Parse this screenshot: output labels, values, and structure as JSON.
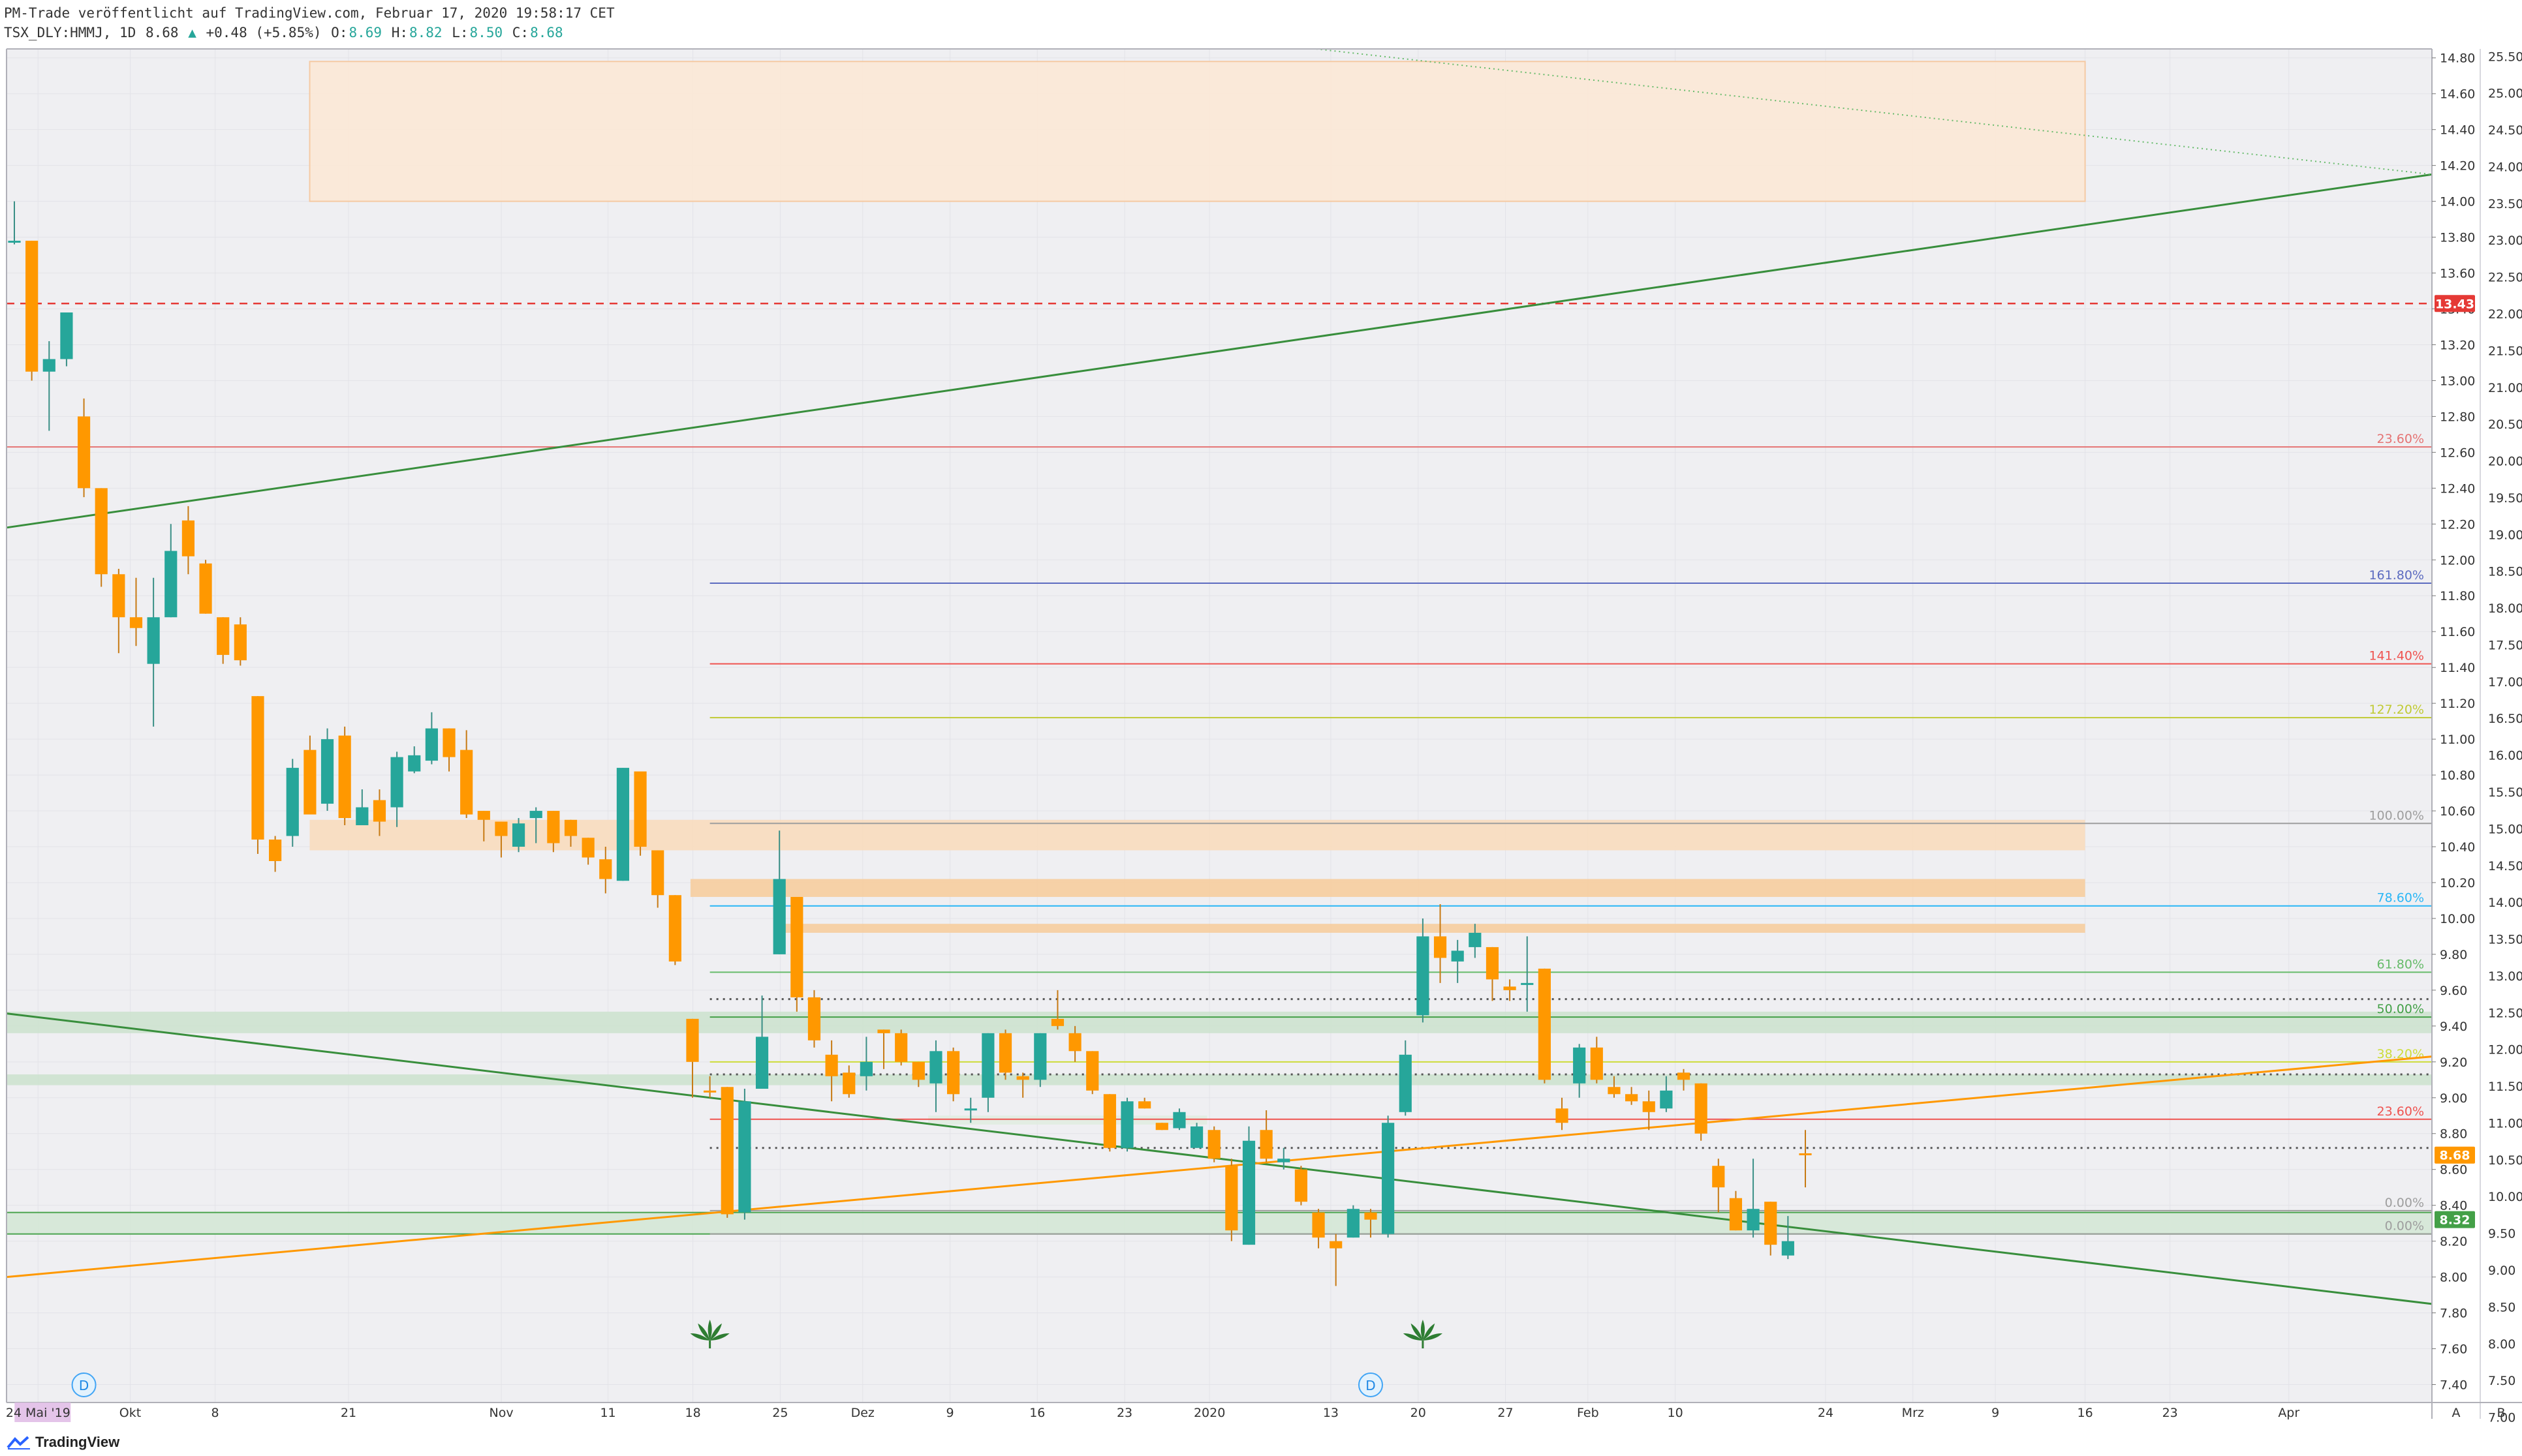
{
  "header": {
    "publisher": "PM-Trade veröffentlicht auf TradingView.com, Februar 17, 2020 19:58:17 CET",
    "symbol": "TSX_DLY:HMMJ, 1D",
    "last": "8.68",
    "arrow": "▲",
    "change": "+0.48 (+5.85%)",
    "o_label": "O:",
    "o": "8.69",
    "h_label": "H:",
    "h": "8.82",
    "l_label": "L:",
    "l": "8.50",
    "c_label": "C:",
    "c": "8.68"
  },
  "brand": "TradingView",
  "icons": [
    "tradingview-logo-icon",
    "dividend-d-icon",
    "cannabis-leaf-icon"
  ],
  "colors": {
    "up": "#26a69a",
    "down": "#ff9800",
    "uptrend": "#388e3c",
    "downtrend": "#388e3c",
    "orange_trend": "#ff9800",
    "resistance_dash": "#e53935",
    "last_price_badge": "#ff9800",
    "support_badge": "#43a047",
    "red_badge": "#e53935"
  },
  "chart_data": {
    "type": "candlestick",
    "title": "",
    "xlabel": "",
    "ylabel": "",
    "grid": true,
    "left_axis_range": [
      7.3,
      14.85
    ],
    "right_axis_range": [
      7.2,
      25.6
    ],
    "x_tick_labels": [
      "24 Mai '19",
      "Okt",
      "8",
      "21",
      "Nov",
      "11",
      "18",
      "25",
      "Dez",
      "9",
      "16",
      "23",
      "2020",
      "13",
      "20",
      "27",
      "Feb",
      "10",
      "24",
      "Mrz",
      "9",
      "16",
      "23",
      "Apr"
    ],
    "left_ticks": [
      "14.80",
      "14.60",
      "14.40",
      "14.20",
      "14.00",
      "13.80",
      "13.60",
      "13.40",
      "13.20",
      "13.00",
      "12.80",
      "12.60",
      "12.40",
      "12.20",
      "12.00",
      "11.80",
      "11.60",
      "11.40",
      "11.20",
      "11.00",
      "10.80",
      "10.60",
      "10.40",
      "10.20",
      "10.00",
      "9.80",
      "9.60",
      "9.40",
      "9.20",
      "9.00",
      "8.80",
      "8.60",
      "8.40",
      "8.20",
      "8.00",
      "7.80",
      "7.60",
      "7.40"
    ],
    "right_ticks": [
      "25.50",
      "25.00",
      "24.50",
      "24.00",
      "23.50",
      "23.00",
      "22.50",
      "22.00",
      "21.50",
      "21.00",
      "20.50",
      "20.00",
      "19.50",
      "19.00",
      "18.50",
      "18.00",
      "17.50",
      "17.00",
      "16.50",
      "16.00",
      "15.50",
      "15.00",
      "14.50",
      "14.00",
      "13.50",
      "13.00",
      "12.50",
      "12.00",
      "11.50",
      "11.00",
      "10.50",
      "10.00",
      "9.50",
      "9.00",
      "8.50",
      "8.00",
      "7.50",
      "7.00"
    ],
    "price_badges": [
      {
        "label": "13.43",
        "value": 13.43,
        "color": "#e53935"
      },
      {
        "label": "8.68",
        "value": 8.68,
        "color": "#ff9800"
      },
      {
        "label": "8.32",
        "value": 8.32,
        "color": "#43a047"
      }
    ],
    "axis_corner_labels": [
      "A",
      "B"
    ],
    "fib_levels": [
      {
        "label": "23.60%",
        "value": 12.63,
        "color": "#e57373",
        "from": 0
      },
      {
        "label": "161.80%",
        "value": 11.87,
        "color": "#5c6bc0",
        "from": 0.29
      },
      {
        "label": "141.40%",
        "value": 11.42,
        "color": "#ef5350",
        "from": 0.29
      },
      {
        "label": "127.20%",
        "value": 11.12,
        "color": "#c0ca33",
        "from": 0.29
      },
      {
        "label": "100.00%",
        "value": 10.53,
        "color": "#9e9e9e",
        "from": 0.29
      },
      {
        "label": "78.60%",
        "value": 10.07,
        "color": "#29b6f6",
        "from": 0.29
      },
      {
        "label": "61.80%",
        "value": 9.7,
        "color": "#66bb6a",
        "from": 0.29
      },
      {
        "label": "50.00%",
        "value": 9.45,
        "color": "#43a047",
        "from": 0.29
      },
      {
        "label": "38.20%",
        "value": 9.2,
        "color": "#cddc39",
        "from": 0.29
      },
      {
        "label": "23.60%",
        "value": 8.88,
        "color": "#ef5350",
        "from": 0.29
      },
      {
        "label": "0.00%",
        "value": 8.37,
        "color": "#9e9e9e",
        "from": 0.29
      },
      {
        "label": "0.00%",
        "value": 8.24,
        "color": "#9e9e9e",
        "from": 0.29
      }
    ],
    "dotted_levels": [
      9.55,
      9.13,
      8.72
    ],
    "resistance_dashed": 13.43,
    "zones": [
      {
        "x0": 0.125,
        "x1": 0.857,
        "y0": 14.78,
        "y1": 14.0,
        "fill": "#fbe9d8",
        "stroke": "#f6c9a0"
      },
      {
        "x0": 0.125,
        "x1": 0.857,
        "y0": 10.55,
        "y1": 10.38,
        "fill": "#f8dcc0",
        "stroke": "none"
      },
      {
        "x0": 0.282,
        "x1": 0.857,
        "y0": 10.22,
        "y1": 10.12,
        "fill": "#f6cfa2",
        "stroke": "none"
      },
      {
        "x0": 0.317,
        "x1": 0.857,
        "y0": 9.97,
        "y1": 9.92,
        "fill": "#f6cfa2",
        "stroke": "none"
      },
      {
        "x0": 0.0,
        "x1": 1.0,
        "y0": 9.48,
        "y1": 9.36,
        "fill": "#cfe3d1",
        "stroke": "none"
      },
      {
        "x0": 0.0,
        "x1": 1.0,
        "y0": 9.13,
        "y1": 9.07,
        "fill": "#cfe3d1",
        "stroke": "none"
      },
      {
        "x0": 0.0,
        "x1": 1.0,
        "y0": 8.36,
        "y1": 8.24,
        "fill": "#d6e8d8",
        "stroke": "#43a047"
      },
      {
        "x0": 0.38,
        "x1": 0.495,
        "y0": 8.9,
        "y1": 8.85,
        "fill": "#e2ece2",
        "stroke": "none"
      }
    ],
    "trendlines": [
      {
        "name": "uptrend-green",
        "x0": 0.0,
        "y0": 12.18,
        "x1": 1.0,
        "y1": 14.15,
        "color": "#388e3c",
        "style": "solid"
      },
      {
        "name": "upper-dotted",
        "x0": 0.54,
        "y0": 14.85,
        "x1": 1.0,
        "y1": 14.15,
        "color": "#66bb6a",
        "style": "dotted"
      },
      {
        "name": "downtrend-green",
        "x0": 0.0,
        "y0": 9.47,
        "x1": 1.0,
        "y1": 7.85,
        "color": "#388e3c",
        "style": "solid"
      },
      {
        "name": "orange-trend",
        "x0": 0.0,
        "y0": 8.0,
        "x1": 1.0,
        "y1": 9.23,
        "color": "#ff9800",
        "style": "solid"
      }
    ],
    "candles": [
      [
        13.78,
        13.78,
        14.0,
        13.76
      ],
      [
        13.78,
        13.05,
        13.78,
        13.0
      ],
      [
        13.05,
        13.12,
        13.22,
        12.72
      ],
      [
        13.12,
        13.38,
        13.38,
        13.08
      ],
      [
        12.8,
        12.4,
        12.9,
        12.35
      ],
      [
        12.4,
        11.92,
        12.4,
        11.85
      ],
      [
        11.92,
        11.68,
        11.95,
        11.48
      ],
      [
        11.68,
        11.62,
        11.9,
        11.52
      ],
      [
        11.42,
        11.68,
        11.9,
        11.07
      ],
      [
        11.68,
        12.05,
        12.2,
        11.68
      ],
      [
        12.22,
        12.02,
        12.3,
        11.92
      ],
      [
        11.98,
        11.7,
        12.0,
        11.7
      ],
      [
        11.68,
        11.47,
        11.68,
        11.42
      ],
      [
        11.64,
        11.44,
        11.68,
        11.41
      ],
      [
        11.24,
        10.44,
        11.24,
        10.36
      ],
      [
        10.44,
        10.32,
        10.46,
        10.26
      ],
      [
        10.46,
        10.84,
        10.89,
        10.4
      ],
      [
        10.94,
        10.58,
        11.02,
        10.58
      ],
      [
        10.64,
        11.0,
        11.06,
        10.6
      ],
      [
        11.02,
        10.56,
        11.07,
        10.52
      ],
      [
        10.52,
        10.62,
        10.72,
        10.54
      ],
      [
        10.66,
        10.54,
        10.72,
        10.46
      ],
      [
        10.62,
        10.9,
        10.93,
        10.51
      ],
      [
        10.82,
        10.91,
        10.96,
        10.81
      ],
      [
        10.88,
        11.06,
        11.15,
        10.86
      ],
      [
        11.06,
        10.9,
        11.06,
        10.82
      ],
      [
        10.94,
        10.58,
        11.05,
        10.56
      ],
      [
        10.6,
        10.55,
        10.6,
        10.43
      ],
      [
        10.54,
        10.46,
        10.54,
        10.34
      ],
      [
        10.4,
        10.53,
        10.56,
        10.37
      ],
      [
        10.56,
        10.6,
        10.62,
        10.42
      ],
      [
        10.6,
        10.42,
        10.6,
        10.37
      ],
      [
        10.55,
        10.46,
        10.55,
        10.4
      ],
      [
        10.45,
        10.34,
        10.45,
        10.3
      ],
      [
        10.33,
        10.22,
        10.4,
        10.14
      ],
      [
        10.21,
        10.84,
        10.84,
        10.21
      ],
      [
        10.82,
        10.4,
        10.8,
        10.35
      ],
      [
        10.38,
        10.13,
        10.38,
        10.06
      ],
      [
        10.13,
        9.76,
        10.13,
        9.74
      ],
      [
        9.44,
        9.2,
        9.44,
        9.0
      ],
      [
        9.04,
        9.03,
        9.12,
        9.0
      ],
      [
        9.06,
        8.35,
        9.06,
        8.33
      ],
      [
        8.36,
        8.98,
        9.05,
        8.32
      ],
      [
        9.05,
        9.34,
        9.57,
        9.05
      ],
      [
        9.8,
        10.22,
        10.49,
        9.8
      ],
      [
        10.12,
        9.56,
        10.12,
        9.48
      ],
      [
        9.56,
        9.32,
        9.6,
        9.28
      ],
      [
        9.24,
        9.12,
        9.32,
        8.98
      ],
      [
        9.14,
        9.02,
        9.18,
        9.0
      ],
      [
        9.12,
        9.2,
        9.34,
        9.04
      ],
      [
        9.38,
        9.36,
        9.38,
        9.16
      ],
      [
        9.36,
        9.2,
        9.38,
        9.18
      ],
      [
        9.2,
        9.1,
        9.2,
        9.06
      ],
      [
        9.08,
        9.26,
        9.32,
        8.92
      ],
      [
        9.26,
        9.02,
        9.28,
        8.98
      ],
      [
        8.94,
        8.94,
        9.0,
        8.86
      ],
      [
        9.0,
        9.36,
        9.36,
        8.92
      ],
      [
        9.36,
        9.14,
        9.38,
        9.1
      ],
      [
        9.12,
        9.1,
        9.14,
        9.0
      ],
      [
        9.1,
        9.36,
        9.36,
        9.06
      ],
      [
        9.44,
        9.4,
        9.6,
        9.38
      ],
      [
        9.36,
        9.26,
        9.4,
        9.2
      ],
      [
        9.26,
        9.04,
        9.26,
        9.02
      ],
      [
        9.02,
        8.72,
        9.02,
        8.7
      ],
      [
        8.72,
        8.98,
        9.0,
        8.7
      ],
      [
        8.98,
        8.94,
        9.0,
        8.94
      ],
      [
        8.86,
        8.82,
        8.86,
        8.82
      ],
      [
        8.83,
        8.92,
        8.94,
        8.82
      ],
      [
        8.72,
        8.84,
        8.86,
        8.72
      ],
      [
        8.82,
        8.66,
        8.84,
        8.64
      ],
      [
        8.62,
        8.26,
        8.66,
        8.2
      ],
      [
        8.18,
        8.76,
        8.84,
        8.18
      ],
      [
        8.82,
        8.66,
        8.93,
        8.64
      ],
      [
        8.64,
        8.66,
        8.72,
        8.6
      ],
      [
        8.6,
        8.42,
        8.62,
        8.4
      ],
      [
        8.36,
        8.22,
        8.38,
        8.16
      ],
      [
        8.2,
        8.16,
        8.24,
        7.95
      ],
      [
        8.22,
        8.38,
        8.4,
        8.22
      ],
      [
        8.36,
        8.32,
        8.38,
        8.22
      ],
      [
        8.24,
        8.86,
        8.9,
        8.22
      ],
      [
        8.92,
        9.24,
        9.32,
        8.9
      ],
      [
        9.46,
        9.9,
        10.0,
        9.42
      ],
      [
        9.9,
        9.78,
        10.08,
        9.64
      ],
      [
        9.76,
        9.82,
        9.88,
        9.64
      ],
      [
        9.84,
        9.92,
        9.97,
        9.78
      ],
      [
        9.84,
        9.66,
        9.84,
        9.54
      ],
      [
        9.62,
        9.6,
        9.66,
        9.54
      ],
      [
        9.64,
        9.64,
        9.9,
        9.48
      ],
      [
        9.72,
        9.1,
        9.72,
        9.08
      ],
      [
        8.94,
        8.86,
        9.0,
        8.82
      ],
      [
        9.08,
        9.28,
        9.3,
        9.0
      ],
      [
        9.28,
        9.1,
        9.34,
        9.08
      ],
      [
        9.06,
        9.02,
        9.12,
        9.0
      ],
      [
        9.02,
        8.98,
        9.06,
        8.96
      ],
      [
        8.98,
        8.92,
        9.04,
        8.82
      ],
      [
        8.94,
        9.04,
        9.12,
        8.92
      ],
      [
        9.14,
        9.1,
        9.16,
        9.04
      ],
      [
        9.08,
        8.8,
        9.08,
        8.76
      ],
      [
        8.62,
        8.5,
        8.66,
        8.36
      ],
      [
        8.44,
        8.26,
        8.48,
        8.26
      ],
      [
        8.26,
        8.38,
        8.66,
        8.22
      ],
      [
        8.42,
        8.18,
        8.42,
        8.12
      ],
      [
        8.12,
        8.2,
        8.34,
        8.1
      ],
      [
        8.69,
        8.68,
        8.82,
        8.5
      ]
    ],
    "markers": [
      {
        "type": "dividend",
        "label": "D",
        "index": 4
      },
      {
        "type": "dividend",
        "label": "D",
        "index": 78
      },
      {
        "type": "leaf",
        "index": 40
      },
      {
        "type": "leaf",
        "index": 81
      }
    ]
  }
}
